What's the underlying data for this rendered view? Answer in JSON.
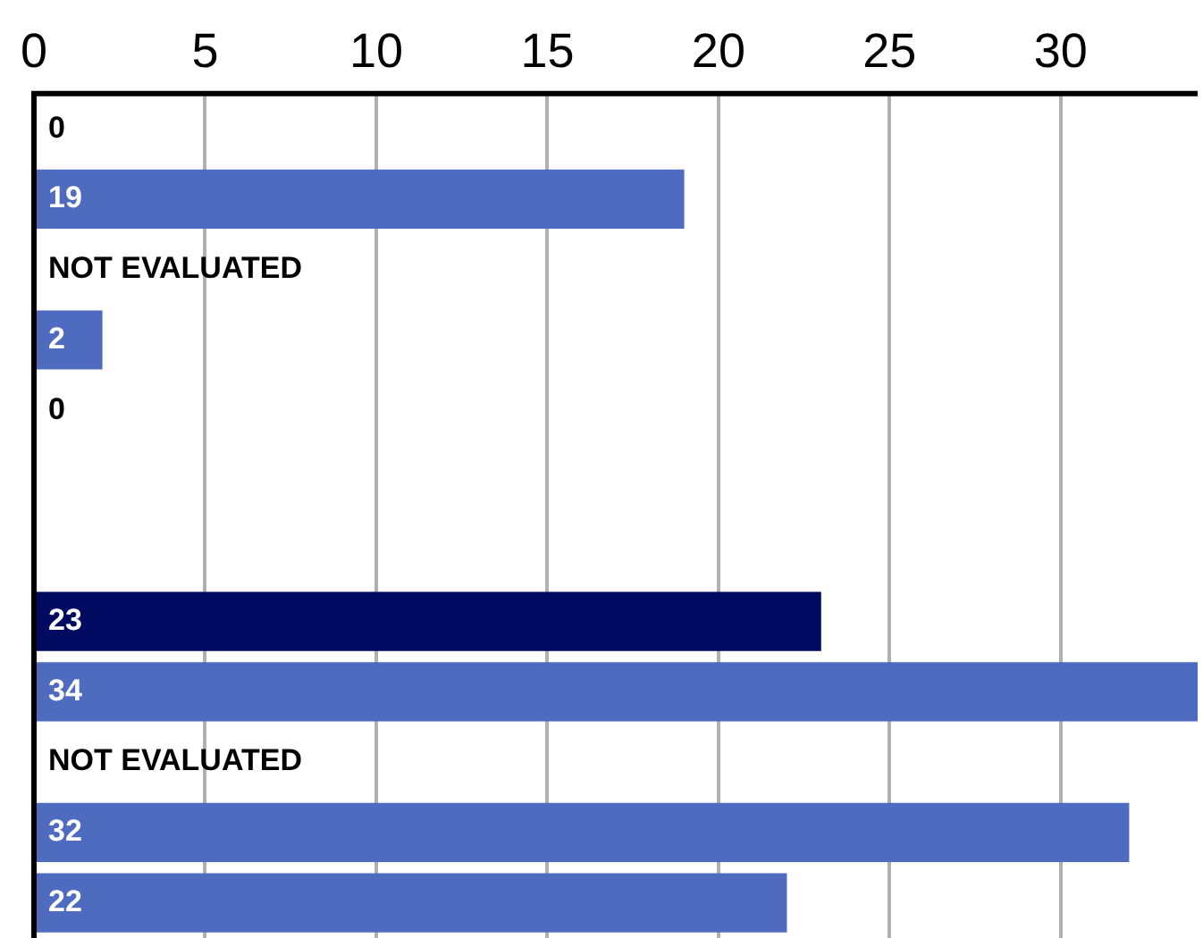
{
  "chart_data": {
    "type": "bar",
    "orientation": "horizontal",
    "categories": [
      null,
      null,
      null,
      null,
      null,
      null,
      null,
      null,
      null,
      null,
      null,
      null
    ],
    "values": [
      0,
      19,
      null,
      2,
      0,
      null,
      null,
      23,
      34,
      null,
      32,
      22
    ],
    "value_labels": [
      "0",
      "19",
      "NOT EVALUATED",
      "2",
      "0",
      null,
      null,
      "23",
      "34",
      "NOT EVALUATED",
      "32",
      "22"
    ],
    "colors": [
      "#4f6bbf",
      "#4f6bbf",
      "#4f6bbf",
      "#4f6bbf",
      "#4f6bbf",
      "#4f6bbf",
      "#4f6bbf",
      "#000a60",
      "#4f6bbf",
      "#4f6bbf",
      "#4f6bbf",
      "#4f6bbf"
    ],
    "xlim": [
      0,
      34
    ],
    "xticks": [
      0,
      5,
      10,
      15,
      20,
      25,
      30
    ],
    "grid": "x",
    "legend": false,
    "tick_labels": "x"
  }
}
